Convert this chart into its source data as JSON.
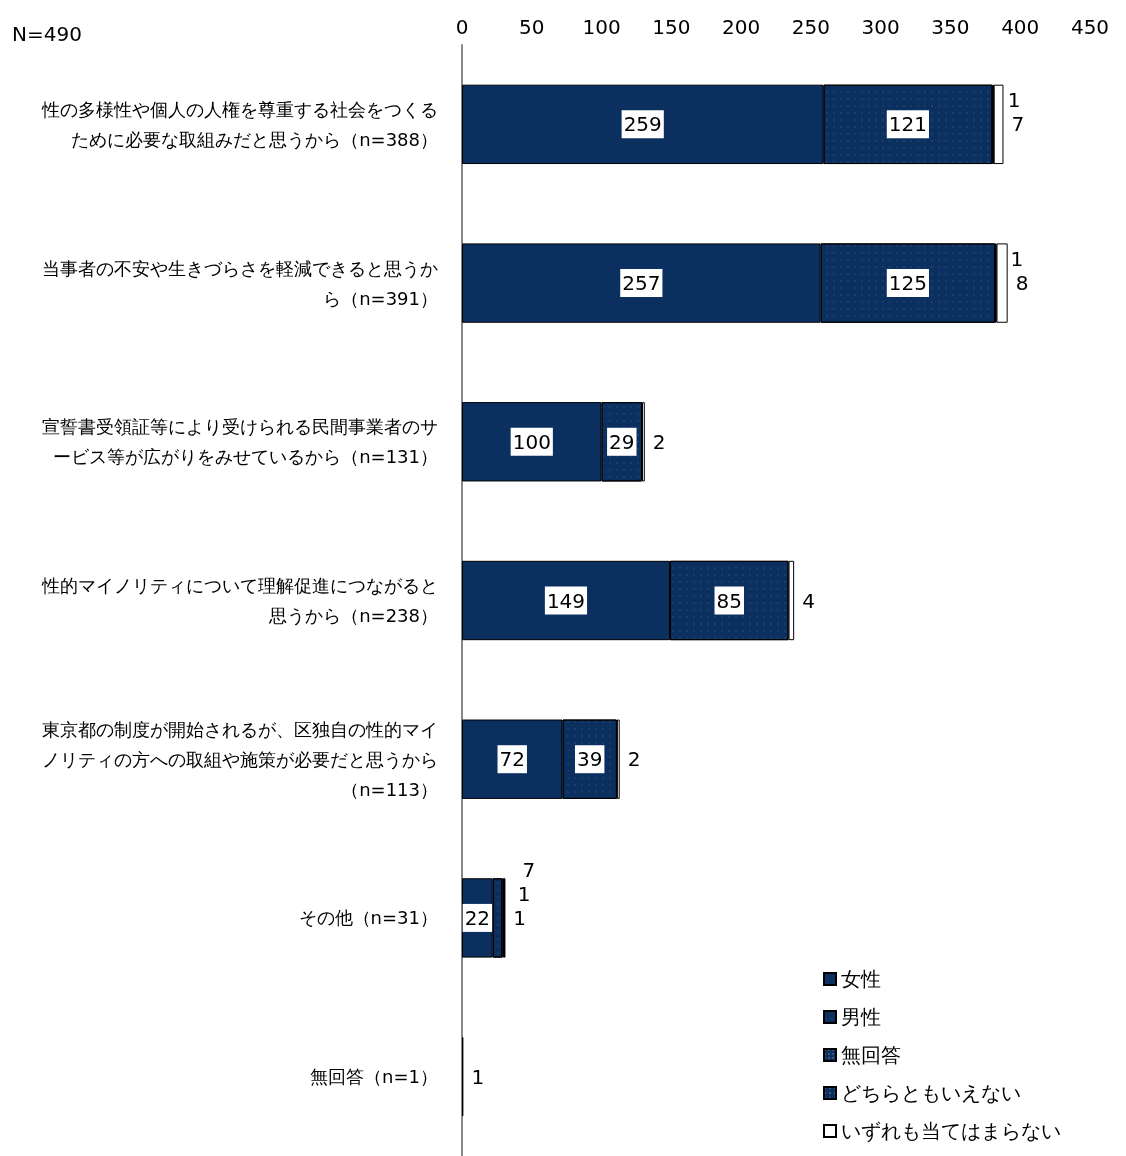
{
  "chart_data": {
    "type": "bar",
    "orientation": "horizontal",
    "stacked": true,
    "annotations": [
      "N=490"
    ],
    "categories": [
      "性の多様性や個人の人権を尊重する社会をつくるために必要な取組みだと思うから（n=388）",
      "当事者の不安や生きづらさを軽減できると思うから（n=391）",
      "宣誓書受領証等により受けられる民間事業者のサービス等が広がりをみせているから（n=131）",
      "性的マイノリティについて理解促進につながると思うから（n=238）",
      "東京都の制度が開始されるが、区独自の性的マイノリティの方への取組や施策が必要だと思うから（n=113）",
      "その他（n=31）",
      "無回答（n=1）"
    ],
    "series": [
      {
        "name": "女性",
        "color": "#0b3060",
        "values": [
          259,
          257,
          100,
          149,
          72,
          22,
          1
        ]
      },
      {
        "name": "男性",
        "color": "#0b3060",
        "values": [
          121,
          125,
          29,
          85,
          39,
          7,
          null
        ]
      },
      {
        "name": "無回答",
        "color": "#0b3060",
        "values": [
          1,
          1,
          null,
          null,
          null,
          1,
          null
        ]
      },
      {
        "name": "どちらともいえない",
        "color": "#0b3060",
        "values": [
          null,
          null,
          null,
          null,
          null,
          1,
          null
        ]
      },
      {
        "name": "いずれも当てはまらない",
        "color": "#ffffff",
        "values": [
          7,
          8,
          2,
          4,
          2,
          null,
          null
        ]
      }
    ],
    "data_labels": true,
    "xlim": [
      0,
      450
    ],
    "xticks": [
      0,
      50,
      100,
      150,
      200,
      250,
      300,
      350,
      400,
      450
    ],
    "grid": false,
    "legend": "bottom right"
  }
}
